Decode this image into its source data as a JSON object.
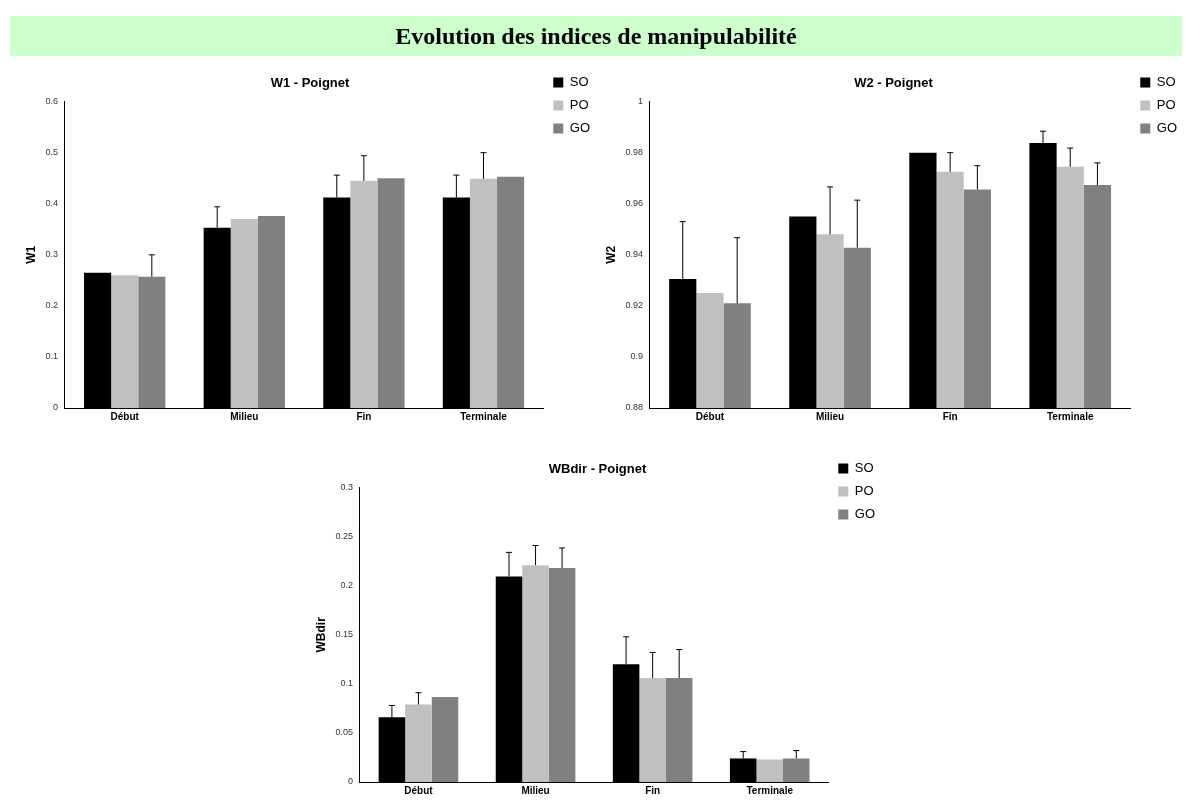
{
  "chart_data": [
    {
      "type": "other",
      "title": "Evolution des indices de manipulabilité"
    },
    {
      "type": "bar",
      "title": "W1 - Poignet",
      "ylabel": "W1",
      "categories": [
        "Début",
        "Milieu",
        "Fin",
        "Terminale"
      ],
      "ylim": [
        0,
        0.6
      ],
      "yticks": [
        0,
        0.1,
        0.2,
        0.3,
        0.4,
        0.5,
        0.6
      ],
      "grid": false,
      "legend": "top right",
      "series": [
        {
          "name": "SO",
          "color": "#000000",
          "values": [
            0.265,
            0.353,
            0.412,
            0.412
          ],
          "errors": [
            null,
            [
              0.353,
              0.394
            ],
            [
              0.412,
              0.456
            ],
            [
              0.412,
              0.456
            ]
          ]
        },
        {
          "name": "PO",
          "color": "#c0c0c0",
          "values": [
            0.26,
            0.37,
            0.445,
            0.449
          ],
          "errors": [
            null,
            null,
            [
              0.445,
              0.494
            ],
            [
              0.449,
              0.5
            ]
          ]
        },
        {
          "name": "GO",
          "color": "#808080",
          "values": [
            0.257,
            0.376,
            0.45,
            0.453
          ],
          "errors": [
            [
              0.257,
              0.3
            ],
            null,
            null,
            null
          ]
        }
      ]
    },
    {
      "type": "bar",
      "title": "W2 - Poignet",
      "ylabel": "W2",
      "categories": [
        "Début",
        "Milieu",
        "Fin",
        "Terminale"
      ],
      "ylim": [
        0.88,
        1
      ],
      "yticks": [
        0.88,
        0.9,
        0.92,
        0.94,
        0.96,
        0.98,
        1
      ],
      "grid": false,
      "legend": "top right",
      "series": [
        {
          "name": "SO",
          "color": "#000000",
          "values": [
            0.9305,
            0.955,
            0.98,
            0.9838
          ],
          "errors": [
            [
              0.9305,
              0.953
            ],
            null,
            null,
            [
              0.9838,
              0.9884
            ]
          ]
        },
        {
          "name": "PO",
          "color": "#c0c0c0",
          "values": [
            0.925,
            0.948,
            0.9725,
            0.9745
          ],
          "errors": [
            null,
            [
              0.948,
              0.9666
            ],
            [
              0.9725,
              0.98
            ],
            [
              0.9745,
              0.9818
            ]
          ]
        },
        {
          "name": "GO",
          "color": "#808080",
          "values": [
            0.921,
            0.9428,
            0.9656,
            0.9673
          ],
          "errors": [
            [
              0.921,
              0.9467
            ],
            [
              0.9428,
              0.9614
            ],
            [
              0.9656,
              0.9749
            ],
            [
              0.9673,
              0.976
            ]
          ]
        }
      ]
    },
    {
      "type": "bar",
      "title": "WBdir - Poignet",
      "ylabel": "WBdir",
      "categories": [
        "Début",
        "Milieu",
        "Fin",
        "Terminale"
      ],
      "ylim": [
        0,
        0.3
      ],
      "yticks": [
        0,
        0.05,
        0.1,
        0.15,
        0.2,
        0.25,
        0.3
      ],
      "grid": false,
      "legend": "top right",
      "series": [
        {
          "name": "SO",
          "color": "#000000",
          "values": [
            0.066,
            0.2095,
            0.12,
            0.024
          ],
          "errors": [
            [
              0.066,
              0.078
            ],
            [
              0.2095,
              0.234
            ],
            [
              0.12,
              0.148
            ],
            [
              0.024,
              0.031
            ]
          ]
        },
        {
          "name": "PO",
          "color": "#c0c0c0",
          "values": [
            0.079,
            0.221,
            0.106,
            0.023
          ],
          "errors": [
            [
              0.079,
              0.091
            ],
            [
              0.221,
              0.241
            ],
            [
              0.106,
              0.132
            ],
            null
          ]
        },
        {
          "name": "GO",
          "color": "#808080",
          "values": [
            0.0865,
            0.218,
            0.106,
            0.024
          ],
          "errors": [
            null,
            [
              0.218,
              0.2385
            ],
            [
              0.106,
              0.135
            ],
            [
              0.024,
              0.032
            ]
          ]
        }
      ]
    }
  ]
}
